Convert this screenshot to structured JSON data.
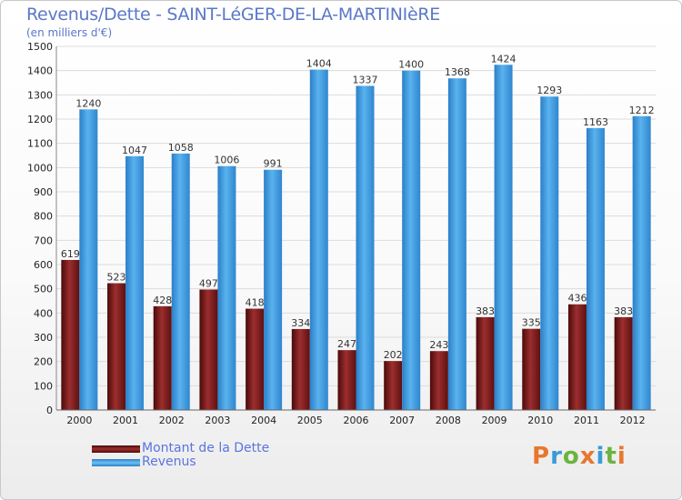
{
  "title": "Revenus/Dette - SAINT-LéGER-DE-LA-MARTINIèRE",
  "subtitle": "(en milliers d'€)",
  "logo": {
    "text": "Proxiti",
    "colors": [
      "#e8772e",
      "#3a9ad9",
      "#6cb33f",
      "#e8772e",
      "#3a9ad9",
      "#6cb33f",
      "#e8772e"
    ]
  },
  "colors": {
    "dette": "#7b1a1a",
    "dette_light": "#b04040",
    "revenus": "#2f86cf",
    "revenus_light": "#5ab2ee",
    "grid": "#dcdcdc",
    "axis_text": "#222222",
    "value_text": "#333333"
  },
  "chart_data": {
    "type": "bar",
    "title": "Revenus/Dette - SAINT-LéGER-DE-LA-MARTINIèRE",
    "ylabel": "(en milliers d'€)",
    "xlabel": "",
    "ylim": [
      0,
      1500
    ],
    "yticks": [
      0,
      100,
      200,
      300,
      400,
      500,
      600,
      700,
      800,
      900,
      1000,
      1100,
      1200,
      1300,
      1400,
      1500
    ],
    "grid": true,
    "legend_position": "bottom-left",
    "categories": [
      "2000",
      "2001",
      "2002",
      "2003",
      "2004",
      "2005",
      "2006",
      "2007",
      "2008",
      "2009",
      "2010",
      "2011",
      "2012"
    ],
    "series": [
      {
        "name": "Montant de la Dette",
        "values": [
          619,
          523,
          428,
          497,
          418,
          334,
          247,
          202,
          243,
          383,
          335,
          436,
          383
        ]
      },
      {
        "name": "Revenus",
        "values": [
          1240,
          1047,
          1058,
          1006,
          991,
          1404,
          1337,
          1400,
          1368,
          1424,
          1293,
          1163,
          1212
        ]
      }
    ]
  }
}
